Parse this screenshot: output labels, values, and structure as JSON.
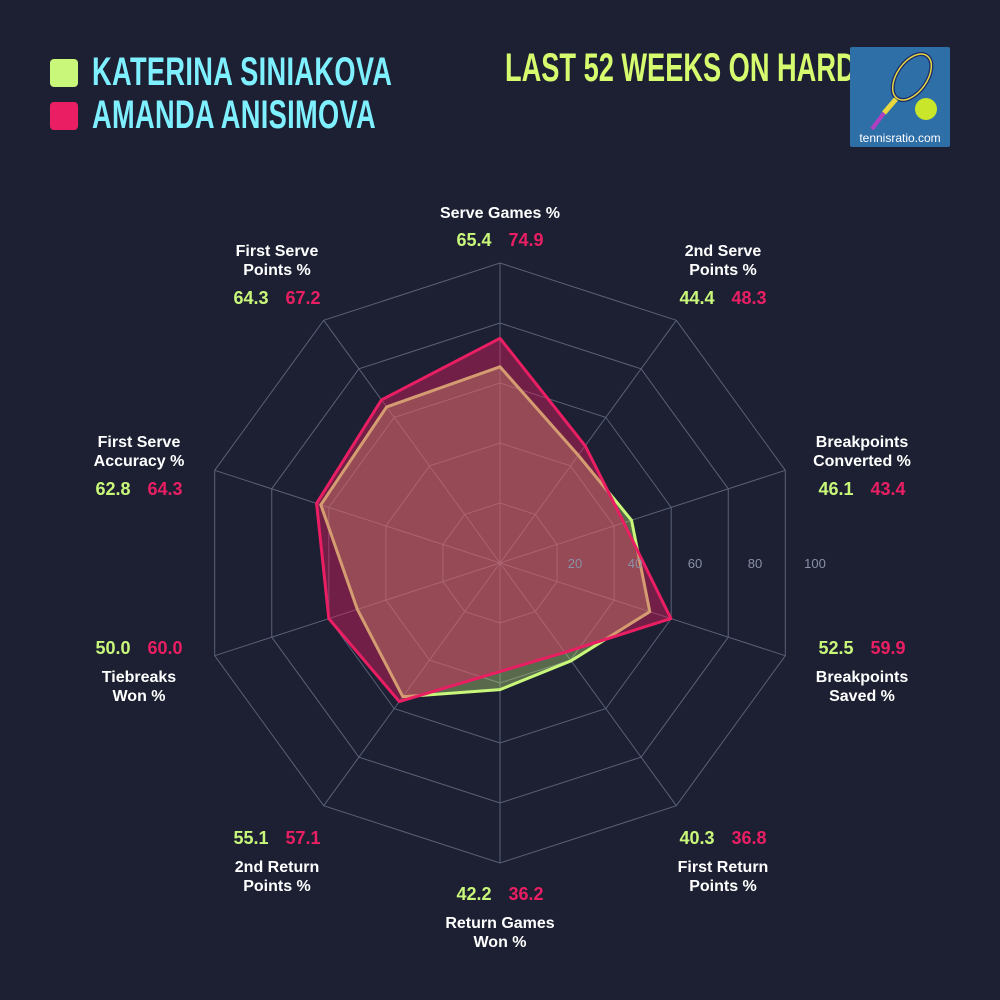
{
  "legend": [
    {
      "name": "KATERINA SINIAKOVA",
      "color": "#c8f77a"
    },
    {
      "name": "AMANDA ANISIMOVA",
      "color": "#e91e63"
    }
  ],
  "title": "LAST 52 WEEKS ON HARD",
  "logo": {
    "text": "tennisratio.com"
  },
  "chart_data": {
    "type": "radar",
    "rlim": [
      0,
      100
    ],
    "ticks": [
      "20",
      "40",
      "60",
      "80",
      "100"
    ],
    "grid": true,
    "axes": [
      [
        "Serve Games %"
      ],
      [
        "2nd Serve",
        "Points %"
      ],
      [
        "Breakpoints",
        "Converted %"
      ],
      [
        "Breakpoints",
        "Saved %"
      ],
      [
        "First Return",
        "Points %"
      ],
      [
        "Return Games",
        "Won %"
      ],
      [
        "2nd Return",
        "Points %"
      ],
      [
        "Tiebreaks",
        "Won %"
      ],
      [
        "First Serve",
        "Accuracy %"
      ],
      [
        "First Serve",
        "Points %"
      ]
    ],
    "series": [
      {
        "name": "KATERINA SINIAKOVA",
        "color": "#c8f77a",
        "values": [
          65.4,
          44.4,
          46.1,
          52.5,
          40.3,
          42.2,
          55.1,
          50.0,
          62.8,
          64.3
        ],
        "labels": [
          "65.4",
          "44.4",
          "46.1",
          "52.5",
          "40.3",
          "42.2",
          "55.1",
          "50.0",
          "62.8",
          "64.3"
        ]
      },
      {
        "name": "AMANDA ANISIMOVA",
        "color": "#e91e63",
        "values": [
          74.9,
          48.3,
          43.4,
          59.9,
          36.8,
          36.2,
          57.1,
          60.0,
          64.3,
          67.2
        ],
        "labels": [
          "74.9",
          "48.3",
          "43.4",
          "59.9",
          "36.8",
          "36.2",
          "57.1",
          "60.0",
          "64.3",
          "67.2"
        ]
      }
    ]
  }
}
